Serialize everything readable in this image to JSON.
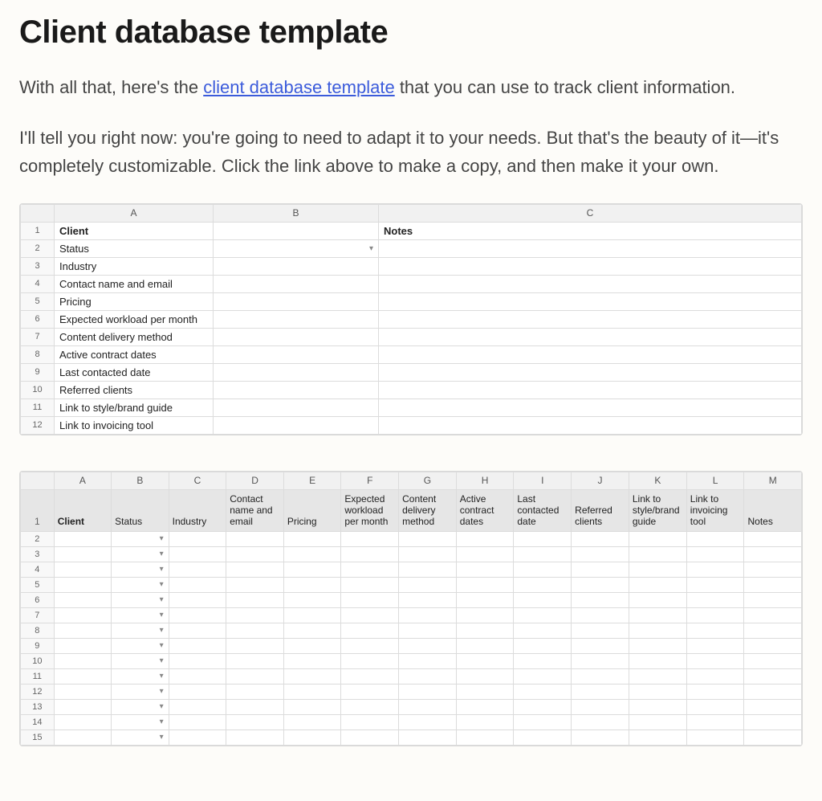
{
  "title": "Client database template",
  "para1_prefix": "With all that, here's the ",
  "link_text": "client database template",
  "para1_suffix": " that you can use to track client information.",
  "para2": "I'll tell you right now: you're going to need to adapt it to your needs. But that's the beauty of it—it's completely customizable. Click the link above to make a copy, and then make it your own.",
  "sheet1": {
    "columns": [
      "A",
      "B",
      "C"
    ],
    "rows": [
      {
        "n": "1",
        "a": "Client",
        "a_bold": true,
        "b": "",
        "c": "Notes",
        "c_bold": true,
        "b_dropdown": false
      },
      {
        "n": "2",
        "a": "Status",
        "b": "",
        "c": "",
        "b_dropdown": true
      },
      {
        "n": "3",
        "a": "Industry",
        "b": "",
        "c": ""
      },
      {
        "n": "4",
        "a": "Contact name and email",
        "b": "",
        "c": ""
      },
      {
        "n": "5",
        "a": "Pricing",
        "b": "",
        "c": ""
      },
      {
        "n": "6",
        "a": "Expected workload per month",
        "b": "",
        "c": ""
      },
      {
        "n": "7",
        "a": "Content delivery method",
        "b": "",
        "c": ""
      },
      {
        "n": "8",
        "a": "Active contract dates",
        "b": "",
        "c": ""
      },
      {
        "n": "9",
        "a": "Last contacted date",
        "b": "",
        "c": ""
      },
      {
        "n": "10",
        "a": "Referred clients",
        "b": "",
        "c": ""
      },
      {
        "n": "11",
        "a": "Link to style/brand guide",
        "b": "",
        "c": ""
      },
      {
        "n": "12",
        "a": "Link to invoicing tool",
        "b": "",
        "c": ""
      }
    ]
  },
  "sheet2": {
    "columns": [
      "A",
      "B",
      "C",
      "D",
      "E",
      "F",
      "G",
      "H",
      "I",
      "J",
      "K",
      "L",
      "M"
    ],
    "headers": [
      "Client",
      "Status",
      "Industry",
      "Contact name and email",
      "Pricing",
      "Expected workload per month",
      "Content delivery method",
      "Active contract dates",
      "Last contacted date",
      "Referred clients",
      "Link to style/brand guide",
      "Link to invoicing tool",
      "Notes"
    ],
    "header_bold_index": 0,
    "data_row_numbers": [
      "2",
      "3",
      "4",
      "5",
      "6",
      "7",
      "8",
      "9",
      "10",
      "11",
      "12",
      "13",
      "14",
      "15"
    ],
    "dropdown_col_index": 1
  },
  "colors": {
    "page_bg": "#fdfcf9",
    "text": "#3a3a3a",
    "heading": "#1a1a1a",
    "link": "#3b5bdb",
    "sheet_border": "#d8d8d8",
    "cell_border": "#dcdcdc",
    "col_head_bg": "#f1f1f1",
    "row_head_bg": "#f8f8f8",
    "sheet2_header_bg": "#e6e6e6"
  }
}
